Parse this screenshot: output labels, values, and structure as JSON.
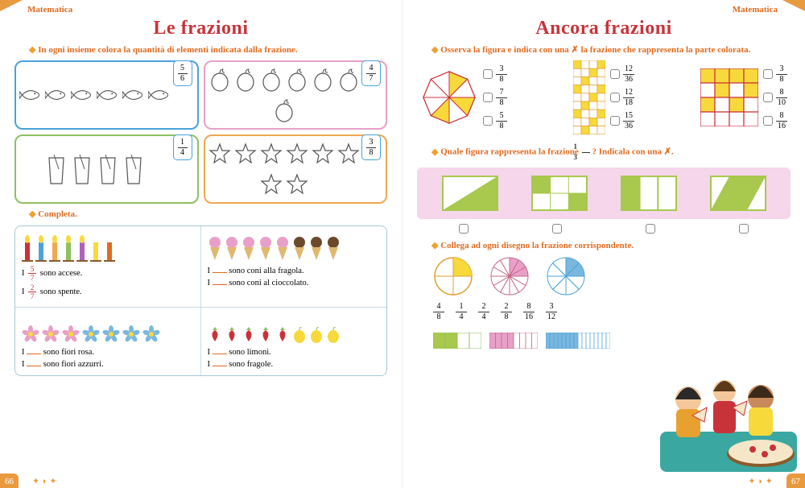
{
  "colors": {
    "accent_orange": "#e06b1f",
    "title_red": "#c8333a",
    "tab_orange": "#e99a3f",
    "blue_border": "#4aa3d9",
    "pink_border": "#e8a0c8",
    "green_border": "#8fc060",
    "orange_border": "#f0a850",
    "highlight_yellow": "#f7d93c",
    "highlight_green": "#a8c84e",
    "light_pink_bg": "#f5d6ea",
    "teal": "#3aa8a0"
  },
  "left": {
    "subject": "Matematica",
    "title": "Le frazioni",
    "page_number": "66",
    "ex1": {
      "instruction": "In ogni insieme colora la quantità di elementi indicata dalla frazione.",
      "boxes": [
        {
          "border": "#4aa3d9",
          "item": "fish",
          "count": 6,
          "n": "5",
          "d": "6"
        },
        {
          "border": "#e8a0c8",
          "item": "lemon",
          "count": 7,
          "n": "4",
          "d": "7"
        },
        {
          "border": "#8fc060",
          "item": "glass",
          "count": 4,
          "n": "1",
          "d": "4"
        },
        {
          "border": "#f0a850",
          "item": "star",
          "count": 8,
          "n": "3",
          "d": "8"
        }
      ]
    },
    "ex2": {
      "label": "Completa.",
      "cells": [
        {
          "icons": "candles",
          "lines": [
            {
              "pre": "I ",
              "frac_n": "5",
              "frac_d": "7",
              "post": " sono accese."
            },
            {
              "pre": "I ",
              "frac_n": "2",
              "frac_d": "7",
              "post": " sono spente."
            }
          ]
        },
        {
          "icons": "cones",
          "lines": [
            {
              "pre": "I ",
              "blank": true,
              "post": " sono coni alla fragola."
            },
            {
              "pre": "I ",
              "blank": true,
              "post": " sono coni al cioccolato."
            }
          ]
        },
        {
          "icons": "flowers",
          "lines": [
            {
              "pre": "I ",
              "blank": true,
              "post": " sono fiori rosa."
            },
            {
              "pre": "I ",
              "blank": true,
              "post": " sono fiori azzurri."
            }
          ]
        },
        {
          "icons": "fruit",
          "lines": [
            {
              "pre": "I ",
              "blank": true,
              "post": " sono limoni."
            },
            {
              "pre": "I ",
              "blank": true,
              "post": " sono fragole."
            }
          ]
        }
      ]
    }
  },
  "right": {
    "subject": "Matematica",
    "title": "Ancora frazioni",
    "page_number": "67",
    "ex1": {
      "instruction": "Osserva la figura e indica con una ✗ la frazione che rappresenta la parte colorata.",
      "sets": [
        {
          "shape": "octagon",
          "shaded": 3,
          "total": 8,
          "options": [
            {
              "n": "3",
              "d": "8"
            },
            {
              "n": "7",
              "d": "8"
            },
            {
              "n": "5",
              "d": "8"
            }
          ]
        },
        {
          "shape": "grid6x6_half",
          "options": [
            {
              "n": "12",
              "d": "36"
            },
            {
              "n": "12",
              "d": "18"
            },
            {
              "n": "15",
              "d": "36"
            }
          ]
        },
        {
          "shape": "grid4x4",
          "options": [
            {
              "n": "3",
              "d": "8"
            },
            {
              "n": "8",
              "d": "10"
            },
            {
              "n": "8",
              "d": "16"
            }
          ]
        }
      ]
    },
    "ex2": {
      "instruction_pre": "Quale figura rappresenta la frazione ",
      "frac_n": "1",
      "frac_d": "3",
      "instruction_post": "? Indicala con una ✗."
    },
    "ex3": {
      "instruction": "Collega ad ogni disegno la frazione corrispondente.",
      "fractions": [
        {
          "n": "4",
          "d": "8"
        },
        {
          "n": "1",
          "d": "4"
        },
        {
          "n": "2",
          "d": "4"
        },
        {
          "n": "2",
          "d": "8"
        },
        {
          "n": "8",
          "d": "16"
        },
        {
          "n": "3",
          "d": "12"
        }
      ]
    }
  }
}
